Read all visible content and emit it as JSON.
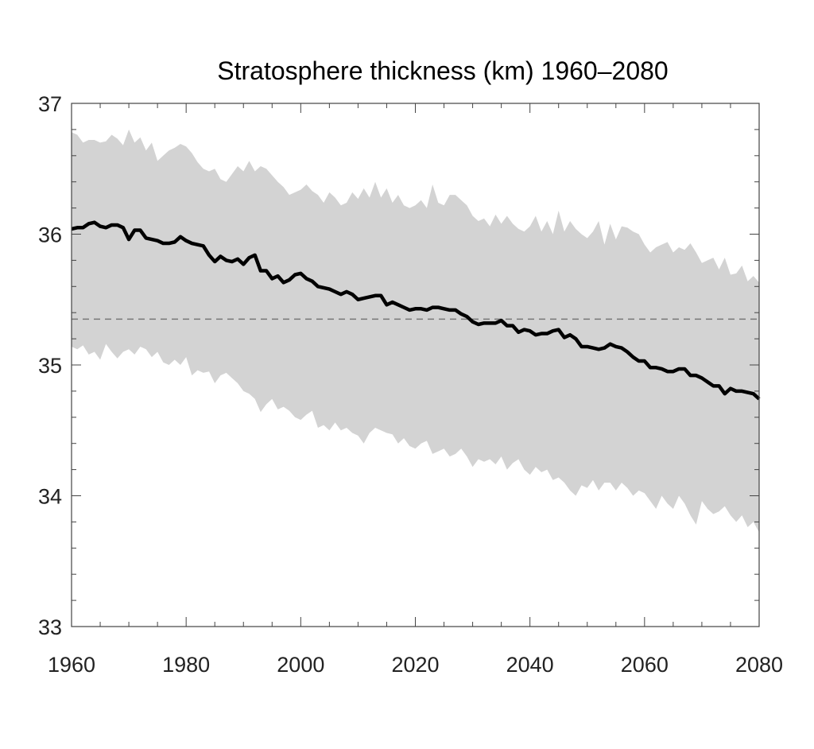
{
  "chart_data": {
    "type": "area",
    "title": "Stratosphere thickness (km) 1960–2080",
    "xlabel": "",
    "ylabel": "",
    "xlim": [
      1960,
      2080
    ],
    "ylim": [
      33,
      37
    ],
    "x_ticks": [
      1960,
      1980,
      2000,
      2020,
      2040,
      2060,
      2080
    ],
    "y_ticks": [
      33,
      34,
      35,
      36,
      37
    ],
    "x_tick_labels": [
      "1960",
      "1980",
      "2000",
      "2020",
      "2040",
      "2060",
      "2080"
    ],
    "y_tick_labels": [
      "33",
      "34",
      "35",
      "36",
      "37"
    ],
    "grid": false,
    "legend": "none",
    "reference_line": {
      "y": 35.35,
      "style": "dashed"
    },
    "colors": {
      "band": "#d3d3d3",
      "mean": "#000000",
      "reference": "#777777",
      "axes": "#444444"
    },
    "series": [
      {
        "type": "line",
        "x": [
          1960,
          1961,
          1962,
          1963,
          1964,
          1965,
          1966,
          1967,
          1968,
          1969,
          1970,
          1971,
          1972,
          1973,
          1974,
          1975,
          1976,
          1977,
          1978,
          1979,
          1980,
          1981,
          1982,
          1983,
          1984,
          1985,
          1986,
          1987,
          1988,
          1989,
          1990,
          1991,
          1992,
          1993,
          1994,
          1995,
          1996,
          1997,
          1998,
          1999,
          2000,
          2001,
          2002,
          2003,
          2004,
          2005,
          2006,
          2007,
          2008,
          2009,
          2010,
          2011,
          2012,
          2013,
          2014,
          2015,
          2016,
          2017,
          2018,
          2019,
          2020,
          2021,
          2022,
          2023,
          2024,
          2025,
          2026,
          2027,
          2028,
          2029,
          2030,
          2031,
          2032,
          2033,
          2034,
          2035,
          2036,
          2037,
          2038,
          2039,
          2040,
          2041,
          2042,
          2043,
          2044,
          2045,
          2046,
          2047,
          2048,
          2049,
          2050,
          2051,
          2052,
          2053,
          2054,
          2055,
          2056,
          2057,
          2058,
          2059,
          2060,
          2061,
          2062,
          2063,
          2064,
          2065,
          2066,
          2067,
          2068,
          2069,
          2070,
          2071,
          2072,
          2073,
          2074,
          2075,
          2076,
          2077,
          2078,
          2079,
          2080
        ],
        "values": [
          36.04,
          36.05,
          36.05,
          36.08,
          36.09,
          36.06,
          36.05,
          36.07,
          36.07,
          36.05,
          35.96,
          36.03,
          36.03,
          35.97,
          35.96,
          35.95,
          35.93,
          35.93,
          35.94,
          35.98,
          35.95,
          35.93,
          35.92,
          35.91,
          35.84,
          35.79,
          35.83,
          35.8,
          35.79,
          35.81,
          35.77,
          35.82,
          35.84,
          35.72,
          35.72,
          35.66,
          35.68,
          35.63,
          35.65,
          35.69,
          35.7,
          35.66,
          35.64,
          35.6,
          35.59,
          35.58,
          35.56,
          35.54,
          35.56,
          35.54,
          35.5,
          35.51,
          35.52,
          35.53,
          35.53,
          35.46,
          35.48,
          35.46,
          35.44,
          35.42,
          35.43,
          35.43,
          35.42,
          35.44,
          35.44,
          35.43,
          35.42,
          35.42,
          35.39,
          35.37,
          35.33,
          35.31,
          35.32,
          35.32,
          35.32,
          35.34,
          35.3,
          35.3,
          35.25,
          35.27,
          35.26,
          35.23,
          35.24,
          35.24,
          35.26,
          35.27,
          35.21,
          35.23,
          35.2,
          35.14,
          35.14,
          35.13,
          35.12,
          35.13,
          35.16,
          35.14,
          35.13,
          35.1,
          35.06,
          35.03,
          35.03,
          34.98,
          34.98,
          34.97,
          34.95,
          34.95,
          34.97,
          34.97,
          34.92,
          34.92,
          34.9,
          34.87,
          34.84,
          34.84,
          34.78,
          34.82,
          34.8,
          34.8,
          34.79,
          34.78,
          34.74
        ]
      },
      {
        "type": "band",
        "x": [
          1960,
          1961,
          1962,
          1963,
          1964,
          1965,
          1966,
          1967,
          1968,
          1969,
          1970,
          1971,
          1972,
          1973,
          1974,
          1975,
          1976,
          1977,
          1978,
          1979,
          1980,
          1981,
          1982,
          1983,
          1984,
          1985,
          1986,
          1987,
          1988,
          1989,
          1990,
          1991,
          1992,
          1993,
          1994,
          1995,
          1996,
          1997,
          1998,
          1999,
          2000,
          2001,
          2002,
          2003,
          2004,
          2005,
          2006,
          2007,
          2008,
          2009,
          2010,
          2011,
          2012,
          2013,
          2014,
          2015,
          2016,
          2017,
          2018,
          2019,
          2020,
          2021,
          2022,
          2023,
          2024,
          2025,
          2026,
          2027,
          2028,
          2029,
          2030,
          2031,
          2032,
          2033,
          2034,
          2035,
          2036,
          2037,
          2038,
          2039,
          2040,
          2041,
          2042,
          2043,
          2044,
          2045,
          2046,
          2047,
          2048,
          2049,
          2050,
          2051,
          2052,
          2053,
          2054,
          2055,
          2056,
          2057,
          2058,
          2059,
          2060,
          2061,
          2062,
          2063,
          2064,
          2065,
          2066,
          2067,
          2068,
          2069,
          2070,
          2071,
          2072,
          2073,
          2074,
          2075,
          2076,
          2077,
          2078,
          2079,
          2080
        ],
        "upper": [
          36.78,
          36.76,
          36.7,
          36.72,
          36.72,
          36.7,
          36.71,
          36.76,
          36.73,
          36.68,
          36.8,
          36.7,
          36.74,
          36.64,
          36.7,
          36.56,
          36.6,
          36.64,
          36.66,
          36.69,
          36.67,
          36.62,
          36.55,
          36.5,
          36.48,
          36.5,
          36.42,
          36.4,
          36.46,
          36.52,
          36.48,
          36.56,
          36.48,
          36.52,
          36.5,
          36.45,
          36.4,
          36.36,
          36.3,
          36.32,
          36.34,
          36.38,
          36.33,
          36.3,
          36.24,
          36.32,
          36.28,
          36.22,
          36.24,
          36.32,
          36.27,
          36.35,
          36.28,
          36.4,
          36.28,
          36.35,
          36.24,
          36.3,
          36.22,
          36.2,
          36.22,
          36.26,
          36.2,
          36.38,
          36.24,
          36.22,
          36.3,
          36.3,
          36.26,
          36.22,
          36.14,
          36.1,
          36.12,
          36.06,
          36.15,
          36.08,
          36.14,
          36.08,
          36.04,
          36.02,
          36.06,
          36.14,
          36.02,
          36.1,
          36.0,
          36.18,
          36.02,
          36.1,
          36.04,
          36.0,
          35.97,
          36.02,
          36.1,
          35.92,
          36.08,
          35.96,
          36.06,
          36.05,
          36.02,
          36.0,
          35.92,
          35.86,
          35.9,
          35.92,
          35.94,
          35.86,
          35.9,
          35.88,
          35.93,
          35.86,
          35.78,
          35.8,
          35.82,
          35.73,
          35.82,
          35.69,
          35.7,
          35.76,
          35.64,
          35.68,
          35.63
        ],
        "lower": [
          35.14,
          35.12,
          35.15,
          35.08,
          35.1,
          35.04,
          35.16,
          35.1,
          35.05,
          35.1,
          35.12,
          35.08,
          35.14,
          35.12,
          35.06,
          35.1,
          35.02,
          35.0,
          35.04,
          35.0,
          35.06,
          34.92,
          34.96,
          34.94,
          34.95,
          34.86,
          34.92,
          34.94,
          34.9,
          34.86,
          34.8,
          34.78,
          34.74,
          34.64,
          34.7,
          34.74,
          34.66,
          34.68,
          34.65,
          34.6,
          34.58,
          34.62,
          34.65,
          34.52,
          34.54,
          34.5,
          34.56,
          34.5,
          34.52,
          34.48,
          34.46,
          34.4,
          34.48,
          34.52,
          34.5,
          34.48,
          34.47,
          34.4,
          34.44,
          34.38,
          34.36,
          34.4,
          34.42,
          34.32,
          34.34,
          34.36,
          34.3,
          34.32,
          34.36,
          34.3,
          34.22,
          34.28,
          34.26,
          34.28,
          34.24,
          34.3,
          34.2,
          34.25,
          34.28,
          34.2,
          34.16,
          34.22,
          34.18,
          34.2,
          34.12,
          34.14,
          34.1,
          34.04,
          34.0,
          34.08,
          34.06,
          34.12,
          34.04,
          34.1,
          34.1,
          34.04,
          34.1,
          34.06,
          34.0,
          34.04,
          34.02,
          33.96,
          33.9,
          34.0,
          33.94,
          33.9,
          34.0,
          33.94,
          33.85,
          33.78,
          33.96,
          33.9,
          33.86,
          33.88,
          33.92,
          33.85,
          33.8,
          33.85,
          33.76,
          33.8,
          33.72
        ]
      }
    ]
  }
}
